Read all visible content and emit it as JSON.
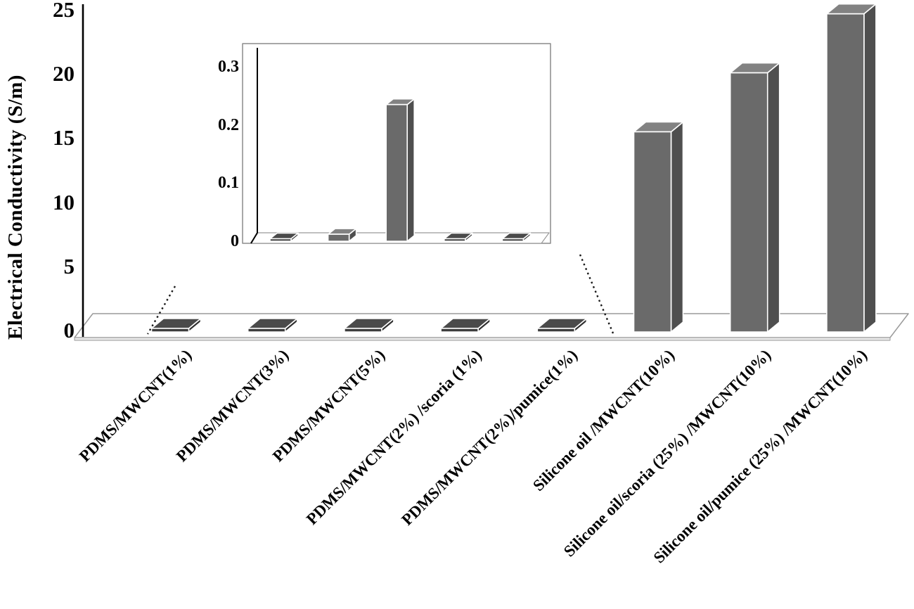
{
  "chart_data": {
    "type": "bar",
    "style": "3d-column",
    "title": "",
    "xlabel": "",
    "ylabel": "Electrical Conductivity (S/m)",
    "ylim": [
      0,
      25
    ],
    "yticks": [
      "0",
      "5",
      "10",
      "15",
      "20",
      "25"
    ],
    "grid": false,
    "legend": false,
    "categories": [
      "PDMS/MWCNT(1%)",
      "PDMS/MWCNT(3%)",
      "PDMS/MWCNT(5%)",
      "PDMS/MWCNT(2%) /scoria (1%)",
      "PDMS/MWCNT(2%)/pumice(1%)",
      "Silicone oil /MWCNT(10%)",
      "Silicone oil/scoria (25%) /MWCNT(10%)",
      "Silicone oil/pumice (25%) /MWCNT(10%)"
    ],
    "values": [
      0.004,
      0.012,
      0.235,
      0.004,
      0.004,
      15.6,
      20.2,
      24.8
    ],
    "inset": {
      "description": "zoom of first five bars",
      "ylim": [
        0,
        0.3
      ],
      "yticks": [
        "0",
        "0.1",
        "0.2",
        "0.3"
      ],
      "categories": [
        "PDMS/MWCNT(1%)",
        "PDMS/MWCNT(3%)",
        "PDMS/MWCNT(5%)",
        "PDMS/MWCNT(2%) /scoria (1%)",
        "PDMS/MWCNT(2%)/pumice(1%)"
      ],
      "values": [
        0.004,
        0.012,
        0.235,
        0.004,
        0.004
      ]
    },
    "colors": {
      "bar": {
        "front": "#6a6a6a",
        "top": "#828282",
        "side": "#4f4f4f"
      },
      "tile": {
        "front": "#3e3e3e",
        "top": "#4a4a4a",
        "side": "#2f2f2f"
      },
      "axis": "#000000",
      "floor_stroke": "#9a9a9a",
      "inset_border": "#8c8c8c"
    }
  }
}
